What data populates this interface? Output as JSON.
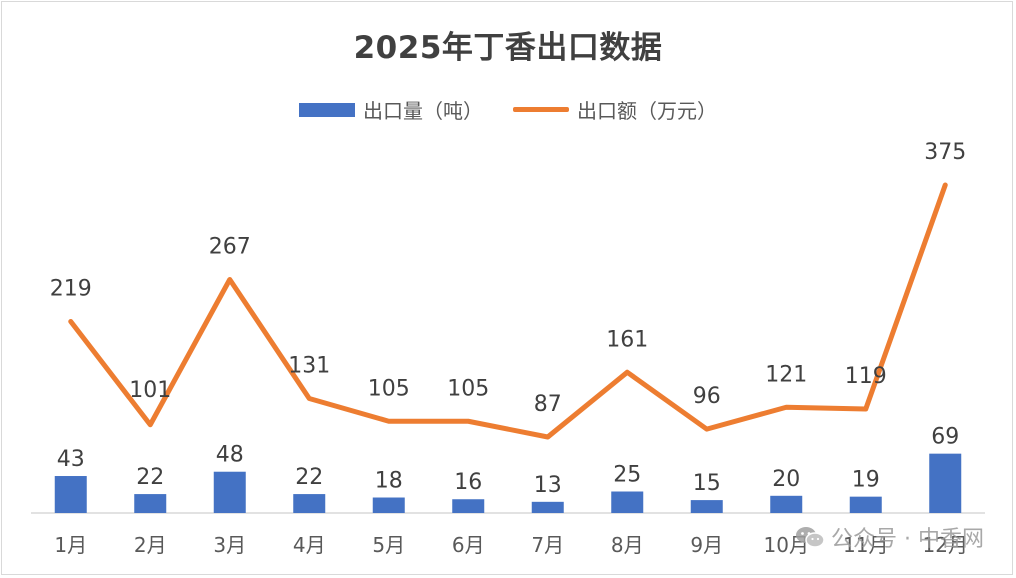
{
  "colors": {
    "bar": "#4472c4",
    "line": "#ed7d31",
    "label_text": "#404040",
    "axis_text": "#595959",
    "axis_line": "#d9d9d9"
  },
  "watermark": {
    "label": "公众号 · 中香网",
    "icon": "wechat-icon"
  },
  "chart_data": {
    "type": "bar",
    "title": "2025年丁香出口数据",
    "categories": [
      "1月",
      "2月",
      "3月",
      "4月",
      "5月",
      "6月",
      "7月",
      "8月",
      "9月",
      "10月",
      "11月",
      "12月"
    ],
    "series": [
      {
        "name": "出口量（吨）",
        "type": "bar",
        "values": [
          43,
          22,
          48,
          22,
          18,
          16,
          13,
          25,
          15,
          20,
          19,
          69
        ]
      },
      {
        "name": "出口额（万元）",
        "type": "line",
        "values": [
          219,
          101,
          267,
          131,
          105,
          105,
          87,
          161,
          96,
          121,
          119,
          375
        ]
      }
    ],
    "legend_position": "top",
    "grid": false,
    "data_labels": true
  }
}
